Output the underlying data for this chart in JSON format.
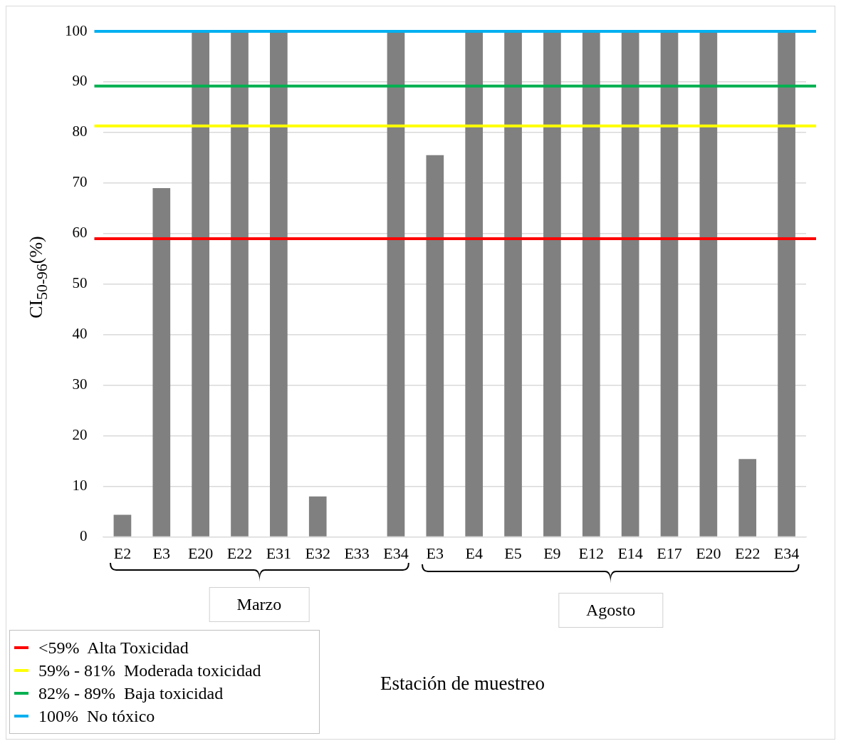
{
  "chart_data": {
    "type": "bar",
    "ylabel": "CI$_{50-96}$(%)",
    "categories": [
      "E2",
      "E3",
      "E20",
      "E22",
      "E31",
      "E32",
      "E33",
      "E34",
      "E3",
      "E4",
      "E5",
      "E9",
      "E12",
      "E14",
      "E17",
      "E20",
      "E22",
      "E34"
    ],
    "values": [
      4.4,
      69,
      100,
      100,
      100,
      8,
      0,
      100,
      75.5,
      100,
      100,
      100,
      100,
      100,
      100,
      100,
      15.4,
      100
    ],
    "color": "#808080",
    "ylim": [
      0,
      100
    ],
    "yticks": [
      0,
      10,
      20,
      30,
      40,
      50,
      60,
      70,
      80,
      90,
      100
    ],
    "grid": "y",
    "legend": "bottom left",
    "ref_lines": [
      {
        "axis": "y",
        "value": 59,
        "label": "<59%  Alta Toxicidad",
        "color": "#ff0000"
      },
      {
        "axis": "y",
        "value": 81.3,
        "label": "59% - 81%  Moderada toxicidad",
        "color": "#ffff00"
      },
      {
        "axis": "y",
        "value": 89.2,
        "label": "82% - 89%  Baja toxicidad",
        "color": "#00b050"
      },
      {
        "axis": "y",
        "value": 100,
        "label": "100%  No tóxico",
        "color": "#00b0f0"
      }
    ],
    "annotations": [
      "Marzo",
      "Agosto",
      "Estación de muestreo"
    ]
  }
}
